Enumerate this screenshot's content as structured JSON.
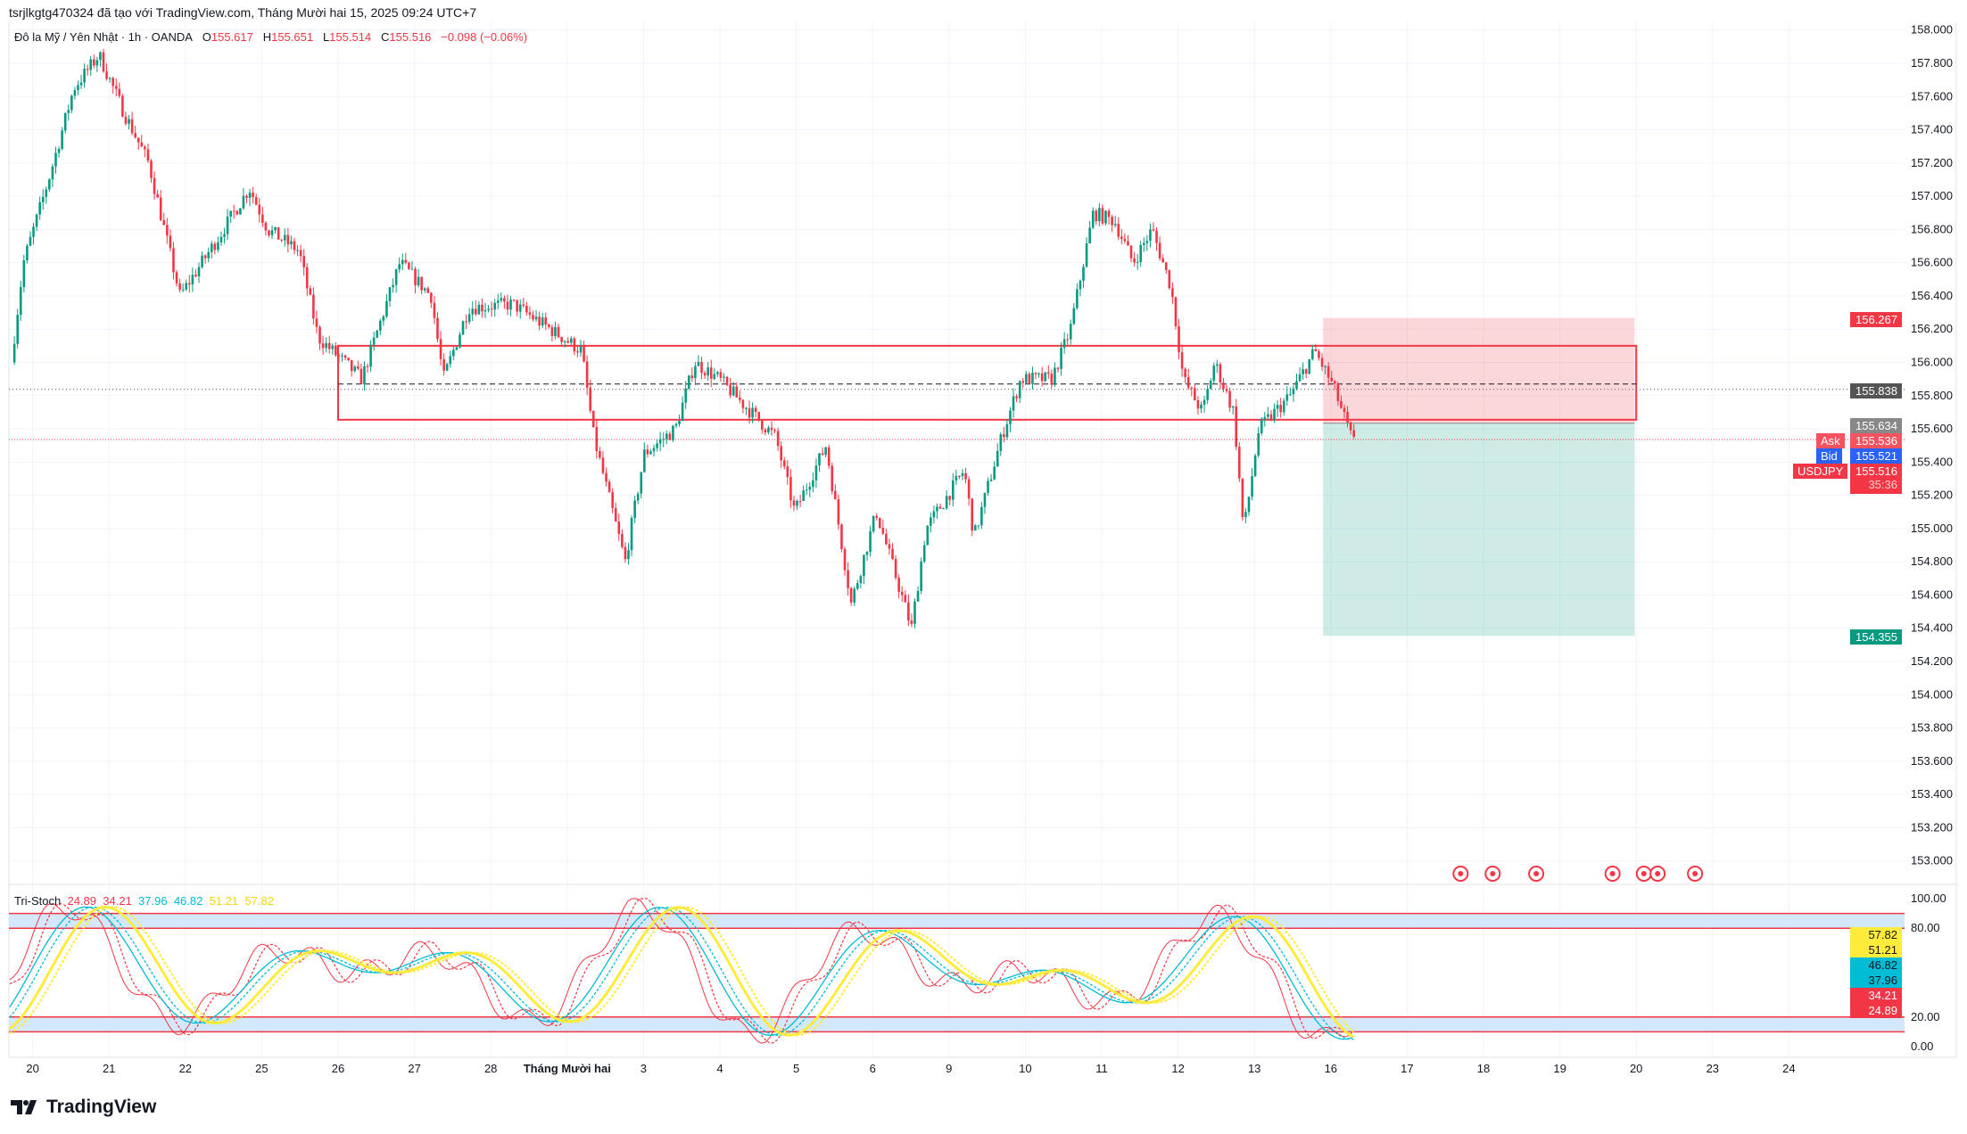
{
  "header": {
    "attribution": "tsrjlkgtg470324 đã tạo với TradingView.com, Tháng Mười hai 15, 2025 09:24 UTC+7"
  },
  "legend": {
    "symbol": "Đô la Mỹ / Yên Nhật · 1h · OANDA",
    "o_label": "O",
    "o": "155.617",
    "h_label": "H",
    "h": "155.651",
    "l_label": "L",
    "l": "155.514",
    "c_label": "C",
    "c": "155.516",
    "change": "−0.098 (−0.06%)"
  },
  "price_labels": {
    "sl": "156.267",
    "dotted": "155.838",
    "entry": "155.634",
    "ask_tag": "Ask",
    "ask": "155.536",
    "bid_tag": "Bid",
    "bid": "155.521",
    "symbol_tag": "USDJPY",
    "last": "155.516",
    "countdown": "35:36",
    "tp": "154.355"
  },
  "stoch": {
    "name": "Tri-Stoch",
    "values": [
      "24.89",
      "34.21",
      "37.96",
      "46.82",
      "51.21",
      "57.82"
    ],
    "axis": [
      "100.00",
      "80.00",
      "20.00",
      "0.00"
    ]
  },
  "brand": {
    "name": "TradingView"
  },
  "colors": {
    "up": "#089981",
    "down": "#f23645",
    "blue": "#2962ff",
    "cyan": "#00bcd4",
    "yellow": "#ffeb3b"
  },
  "chart_data": {
    "type": "candlestick",
    "title": "Đô la Mỹ / Yên Nhật · 1h · OANDA",
    "ylim": [
      153.0,
      158.0
    ],
    "yticks": [
      "158.000",
      "157.800",
      "157.600",
      "157.400",
      "157.200",
      "157.000",
      "156.800",
      "156.600",
      "156.400",
      "156.200",
      "156.000",
      "155.800",
      "155.600",
      "155.400",
      "155.200",
      "155.000",
      "154.800",
      "154.600",
      "154.400",
      "154.200",
      "154.000",
      "153.800",
      "153.600",
      "153.400",
      "153.200",
      "153.000"
    ],
    "xticks": [
      "20",
      "21",
      "22",
      "25",
      "26",
      "27",
      "28",
      "Tháng Mười hai",
      "3",
      "4",
      "5",
      "6",
      "9",
      "10",
      "11",
      "12",
      "13",
      "16",
      "17",
      "18",
      "19",
      "20",
      "23",
      "24"
    ],
    "price_path_day_price": [
      [
        -0.26,
        156.0
      ],
      [
        -0.1,
        156.6
      ],
      [
        0.23,
        157.1
      ],
      [
        0.56,
        157.65
      ],
      [
        0.89,
        157.85
      ],
      [
        1.22,
        157.5
      ],
      [
        1.54,
        157.2
      ],
      [
        1.95,
        156.4
      ],
      [
        2.45,
        156.75
      ],
      [
        2.86,
        157.05
      ],
      [
        3.1,
        156.8
      ],
      [
        3.51,
        156.67
      ],
      [
        3.76,
        156.15
      ],
      [
        4.33,
        155.9
      ],
      [
        4.83,
        156.6
      ],
      [
        5.24,
        156.4
      ],
      [
        5.4,
        155.9
      ],
      [
        5.73,
        156.33
      ],
      [
        6.31,
        156.35
      ],
      [
        6.8,
        156.2
      ],
      [
        7.21,
        156.07
      ],
      [
        7.37,
        155.55
      ],
      [
        7.78,
        154.8
      ],
      [
        8.03,
        155.45
      ],
      [
        8.44,
        155.6
      ],
      [
        8.69,
        156.0
      ],
      [
        9.01,
        155.9
      ],
      [
        9.43,
        155.7
      ],
      [
        9.75,
        155.55
      ],
      [
        10.0,
        155.1
      ],
      [
        10.41,
        155.5
      ],
      [
        10.74,
        154.55
      ],
      [
        11.07,
        155.1
      ],
      [
        11.53,
        154.4
      ],
      [
        11.72,
        155.0
      ],
      [
        12.22,
        155.35
      ],
      [
        12.35,
        154.95
      ],
      [
        12.71,
        155.55
      ],
      [
        12.96,
        155.9
      ],
      [
        13.37,
        155.9
      ],
      [
        13.61,
        156.2
      ],
      [
        13.91,
        156.9
      ],
      [
        14.19,
        156.85
      ],
      [
        14.43,
        156.6
      ],
      [
        14.68,
        156.8
      ],
      [
        14.93,
        156.45
      ],
      [
        15.09,
        155.9
      ],
      [
        15.34,
        155.7
      ],
      [
        15.5,
        156.0
      ],
      [
        15.75,
        155.7
      ],
      [
        15.88,
        154.98
      ],
      [
        16.08,
        155.6
      ],
      [
        16.49,
        155.8
      ],
      [
        16.81,
        156.07
      ],
      [
        17.06,
        155.85
      ],
      [
        17.31,
        155.52
      ]
    ],
    "zone": {
      "top": 156.1,
      "bottom": 155.655,
      "start_day": 4.0,
      "end_day": 21.0,
      "mid": 155.87
    },
    "position": {
      "stop": 156.267,
      "entry": 155.634,
      "target": 154.355,
      "start_day": 16.9,
      "end_day": 20.98
    },
    "stoch_bands": [
      [
        80,
        90
      ],
      [
        10,
        20
      ]
    ],
    "stoch_ylim": [
      0,
      100
    ],
    "events_day": [
      18.7,
      19.12,
      19.69,
      20.69,
      21.1,
      21.28,
      21.77
    ]
  }
}
